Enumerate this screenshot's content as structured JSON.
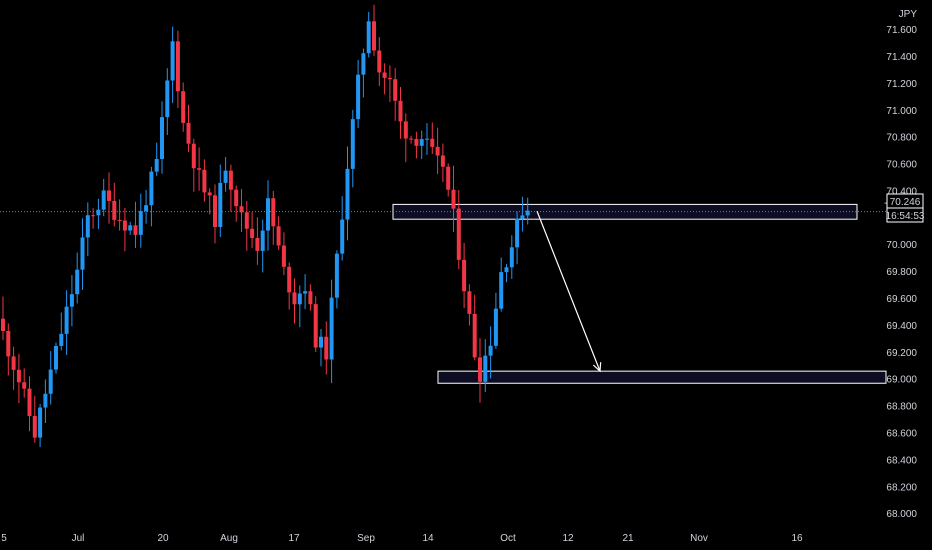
{
  "chart_data": {
    "type": "candlestick",
    "currency_label": "JPY",
    "price_axis": {
      "ticks": [
        "71.600",
        "71.400",
        "71.200",
        "71.000",
        "70.800",
        "70.600",
        "70.400",
        "70.000",
        "69.800",
        "69.600",
        "69.400",
        "69.200",
        "69.000",
        "68.800",
        "68.600",
        "68.400",
        "68.200",
        "68.000"
      ],
      "range": [
        67.73,
        71.82
      ]
    },
    "time_axis": {
      "labels": [
        "5",
        "Jul",
        "20",
        "Aug",
        "17",
        "Sep",
        "14",
        "Oct",
        "12",
        "21",
        "Nov",
        "16"
      ]
    },
    "current_price": {
      "value": 70.246,
      "label": "70.246",
      "countdown": "16:54:53",
      "crosshair_price": "-"
    },
    "zones": [
      {
        "name": "resistance",
        "from": 70.19,
        "to": 70.3
      },
      {
        "name": "support",
        "from": 68.97,
        "to": 69.06
      }
    ],
    "projection": {
      "from_price": 70.25,
      "to_price": 69.06
    },
    "colors": {
      "up": "#2196f3",
      "down": "#f23645",
      "background": "#000000",
      "zone_border": "#ffffff",
      "zone_fill": "#16163e",
      "price_line": "#787b86",
      "text": "#d1d4dc"
    }
  }
}
